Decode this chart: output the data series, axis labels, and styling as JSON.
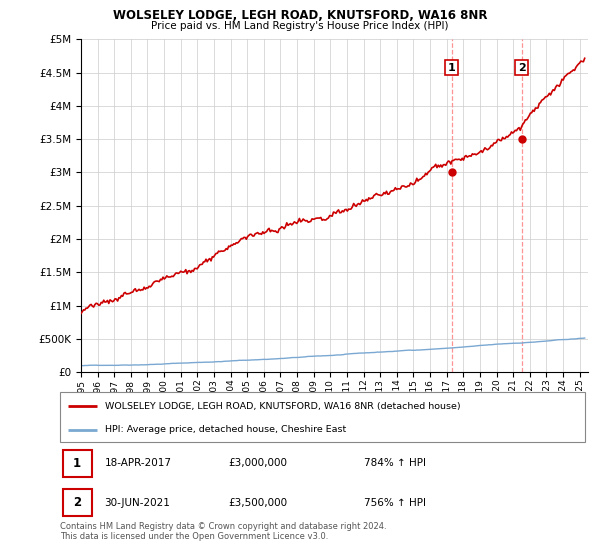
{
  "title": "WOLSELEY LODGE, LEGH ROAD, KNUTSFORD, WA16 8NR",
  "subtitle": "Price paid vs. HM Land Registry's House Price Index (HPI)",
  "legend_line1": "WOLSELEY LODGE, LEGH ROAD, KNUTSFORD, WA16 8NR (detached house)",
  "legend_line2": "HPI: Average price, detached house, Cheshire East",
  "transaction1_date": "18-APR-2017",
  "transaction1_price": "£3,000,000",
  "transaction1_hpi": "784% ↑ HPI",
  "transaction2_date": "30-JUN-2021",
  "transaction2_price": "£3,500,000",
  "transaction2_hpi": "756% ↑ HPI",
  "footnote": "Contains HM Land Registry data © Crown copyright and database right 2024.\nThis data is licensed under the Open Government Licence v3.0.",
  "ylim": [
    0,
    5000000
  ],
  "yticks": [
    0,
    500000,
    1000000,
    1500000,
    2000000,
    2500000,
    3000000,
    3500000,
    4000000,
    4500000,
    5000000
  ],
  "xlim_start": 1995.0,
  "xlim_end": 2025.5,
  "hpi_color": "#7aa8d2",
  "price_color": "#cc0000",
  "dashed_color": "#ff8888",
  "transaction1_x": 2017.3,
  "transaction2_x": 2021.5,
  "transaction1_y": 3000000,
  "transaction2_y": 3500000,
  "background_color": "#ffffff",
  "grid_color": "#cccccc"
}
